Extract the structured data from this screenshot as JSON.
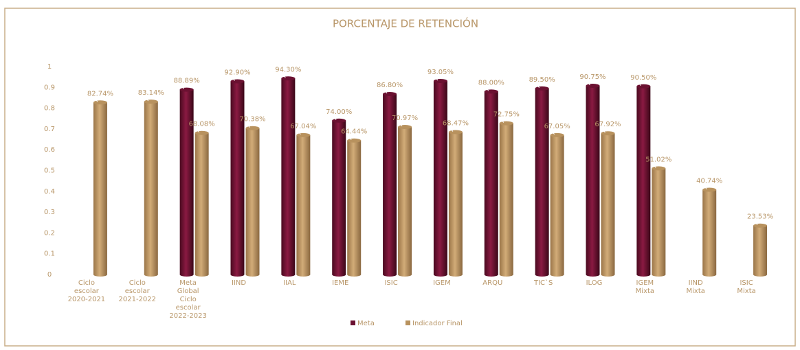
{
  "chart_data": {
    "type": "bar",
    "title": "PORCENTAJE DE RETENCIÓN",
    "categories": [
      "Ciclo escolar 2020-2021",
      "Ciclo escolar 2021-2022",
      "Meta Global Ciclo escolar 2022-2023",
      "IIND",
      "IIAL",
      "IEME",
      "ISIC",
      "IGEM",
      "ARQU",
      "TIC`S",
      "ILOG",
      "IGEM Mixta",
      "IIND Mixta",
      "ISIC Mixta"
    ],
    "series": [
      {
        "name": "Meta",
        "color": "#6b1131",
        "values": [
          null,
          null,
          0.8889,
          0.929,
          0.943,
          0.74,
          0.868,
          0.9305,
          0.88,
          0.895,
          0.9075,
          0.905,
          null,
          null
        ],
        "value_labels": [
          null,
          null,
          "88.89%",
          "92.90%",
          "94.30%",
          "74.00%",
          "86.80%",
          "93.05%",
          "88.00%",
          "89.50%",
          "90.75%",
          "90.50%",
          null,
          null
        ]
      },
      {
        "name": "Indicador Final",
        "color": "#b8925e",
        "values": [
          0.8274,
          0.8314,
          0.6808,
          0.7038,
          0.6704,
          0.6444,
          0.7097,
          0.6847,
          0.7275,
          0.6705,
          0.6792,
          0.5102,
          0.4074,
          0.2353
        ],
        "value_labels": [
          "82.74%",
          "83.14%",
          "68.08%",
          "70.38%",
          "67.04%",
          "64.44%",
          "70.97%",
          "68.47%",
          "72.75%",
          "67.05%",
          "67.92%",
          "51.02%",
          "40.74%",
          "23.53%"
        ]
      }
    ],
    "ylim": [
      0,
      1
    ],
    "yticks": [
      0,
      0.1,
      0.2,
      0.3,
      0.4,
      0.5,
      0.6,
      0.7,
      0.8,
      0.9,
      1
    ]
  }
}
